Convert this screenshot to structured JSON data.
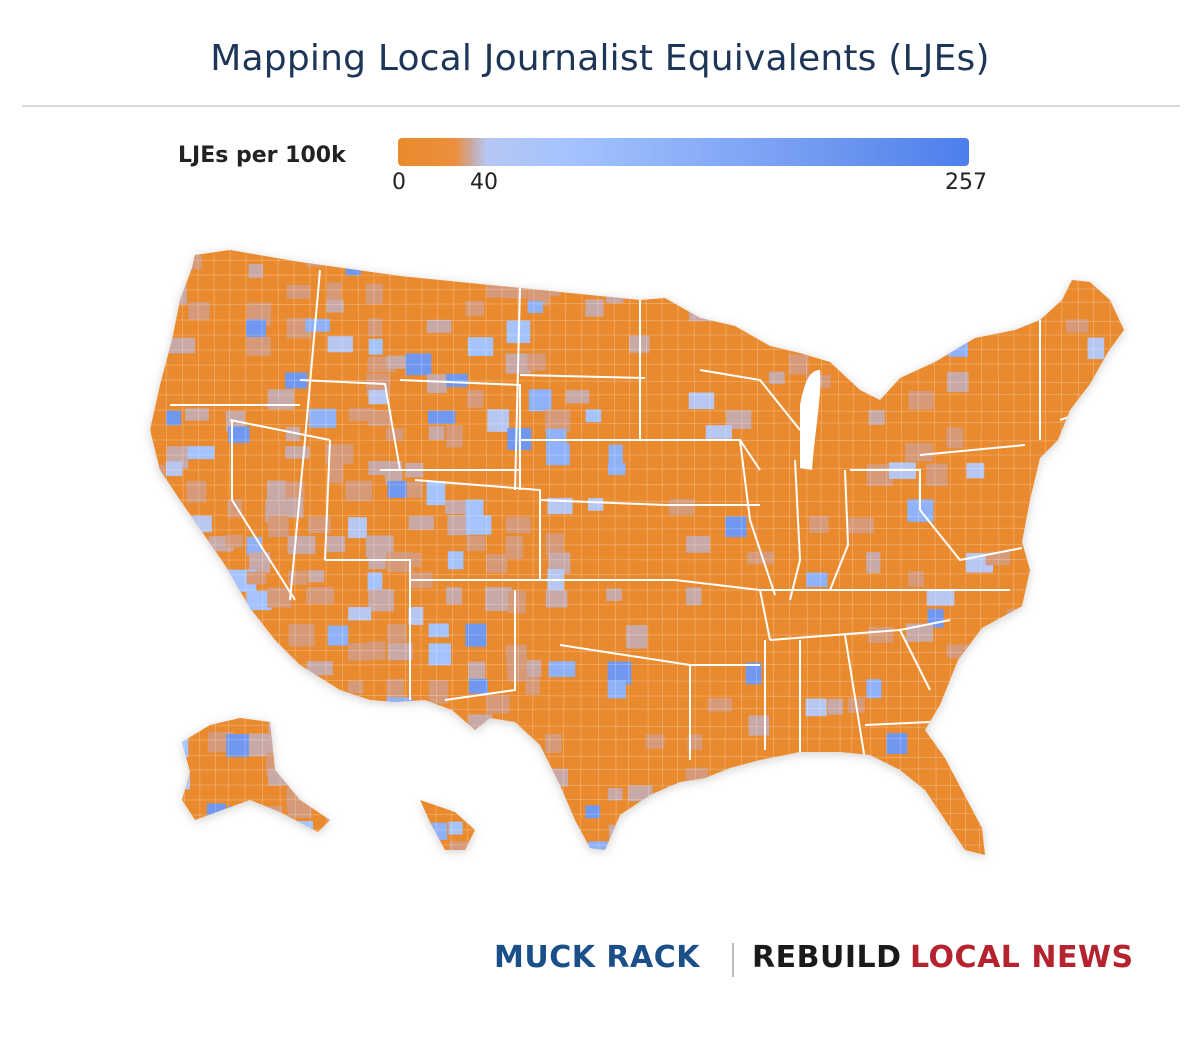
{
  "header": {
    "title": "Mapping Local Journalist Equivalents (LJEs)"
  },
  "legend": {
    "label": "LJEs per 100k",
    "ticks": [
      "0",
      "40",
      "257"
    ],
    "min": 0,
    "break": 40,
    "max": 257,
    "colors": {
      "low": "#ea8a2e",
      "mid": "#a4c3ff",
      "high": "#4d7eec"
    }
  },
  "map": {
    "region": "United States counties",
    "grid_lines": true
  },
  "footer": {
    "brand_1": "MUCK RACK",
    "brand_2": "REBUILD",
    "brand_3": "LOCAL NEWS"
  }
}
